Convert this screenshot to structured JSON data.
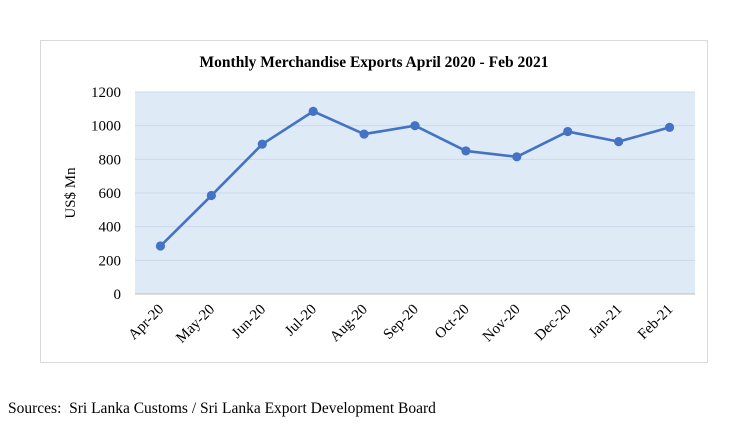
{
  "chart_data": {
    "type": "line",
    "title": "Monthly Merchandise Exports April 2020 - Feb 2021",
    "xlabel": "",
    "ylabel": "US$ Mn",
    "categories": [
      "Apr-20",
      "May-20",
      "Jun-20",
      "Jul-20",
      "Aug-20",
      "Sep-20",
      "Oct-20",
      "Nov-20",
      "Dec-20",
      "Jan-21",
      "Feb-21"
    ],
    "series": [
      {
        "values": [
          285,
          585,
          890,
          1085,
          950,
          1000,
          850,
          815,
          965,
          905,
          990
        ]
      }
    ],
    "ylim": [
      0,
      1200
    ],
    "yticks": [
      0,
      200,
      400,
      600,
      800,
      1000,
      1200
    ],
    "grid": true,
    "legend": "none",
    "colors": {
      "line": "#4472c4",
      "plot_background": "#deeaf6",
      "gridline": "#ccd9ea"
    }
  },
  "source_note": "Sources:  Sri Lanka Customs / Sri Lanka Export Development Board"
}
